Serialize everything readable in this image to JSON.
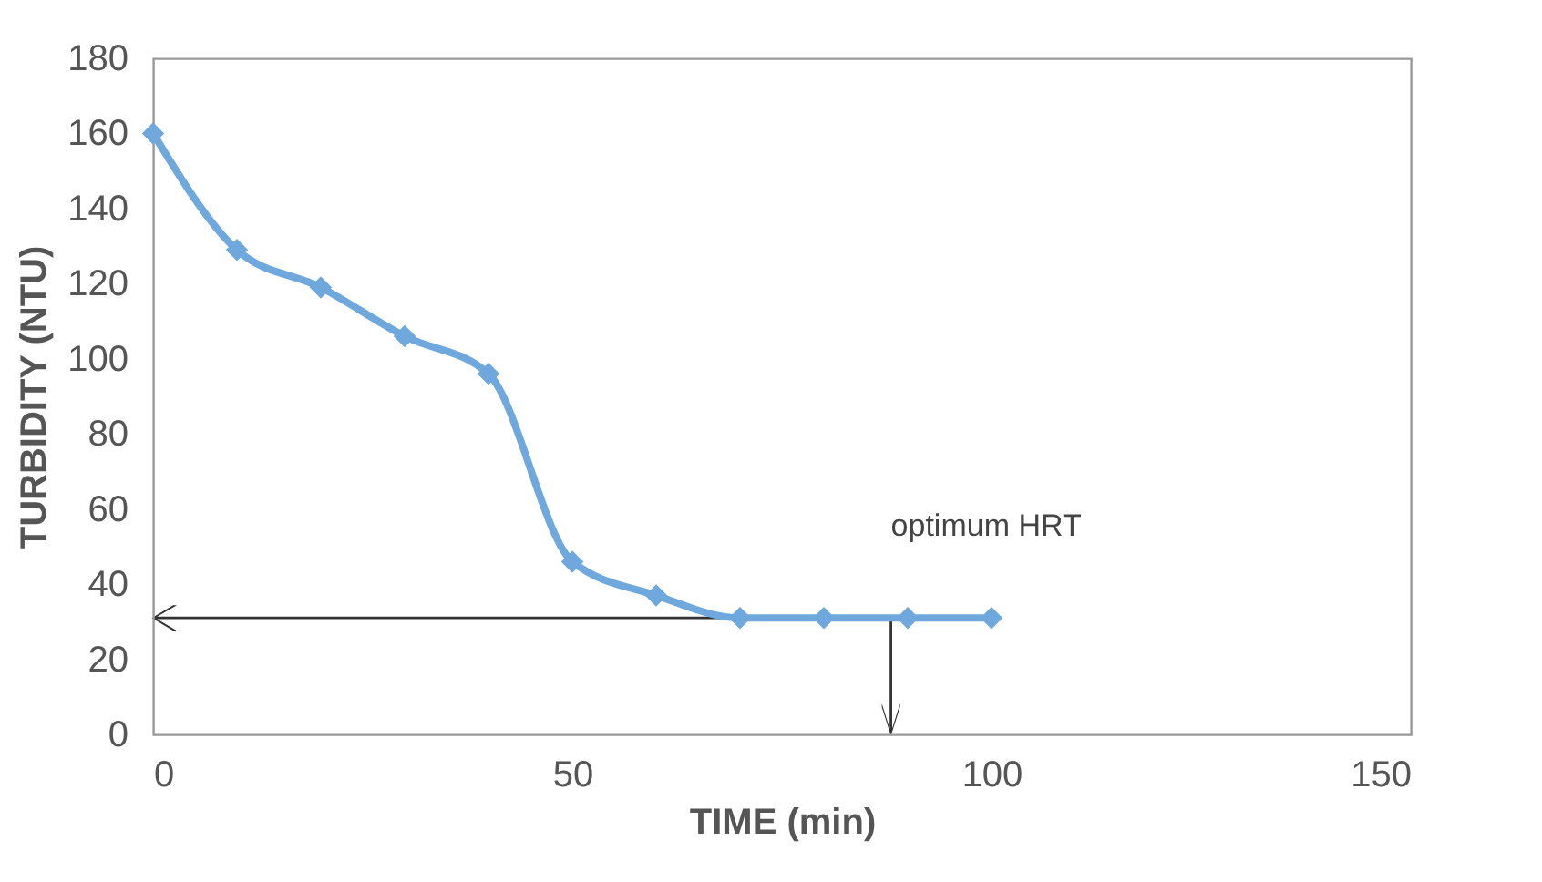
{
  "chart_data": {
    "type": "line",
    "xlabel": "TIME (min)",
    "ylabel": "TURBIDITY (NTU)",
    "x": [
      0,
      10,
      20,
      30,
      40,
      50,
      60,
      70,
      80,
      90,
      100
    ],
    "series": [
      {
        "color": "#6fa8dc",
        "values": [
          160,
          129,
          119,
          106,
          96,
          46,
          37,
          31,
          31,
          31,
          31
        ]
      }
    ],
    "xlim": [
      0,
      150
    ],
    "xticks": [
      0,
      50,
      100,
      150
    ],
    "ylim": [
      0,
      180
    ],
    "yticks": [
      0,
      20,
      40,
      60,
      80,
      100,
      120,
      140,
      160,
      180
    ],
    "marker": "diamond",
    "grid": false,
    "annotations": [
      {
        "text": "optimum HRT",
        "x": 88,
        "y": 31
      }
    ]
  }
}
